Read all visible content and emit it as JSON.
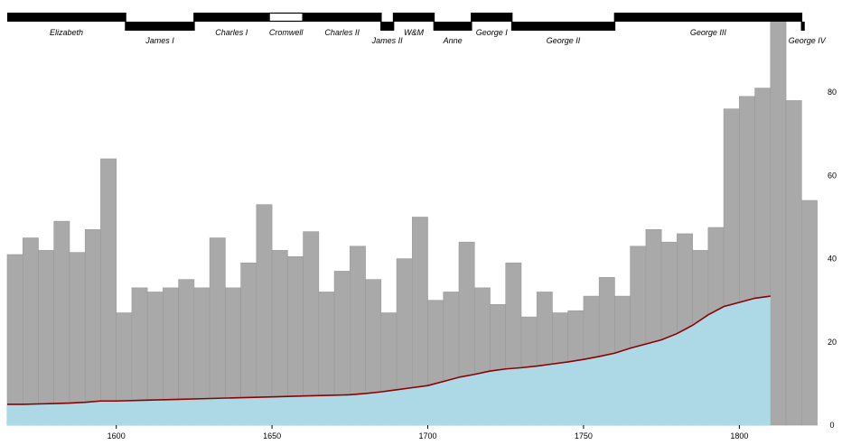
{
  "chart_data": {
    "type": "bar",
    "title": "",
    "xlabel": "",
    "ylabel": "",
    "x_range": [
      1565,
      1826
    ],
    "ylim": [
      0,
      100
    ],
    "grid": true,
    "x_ticks": [
      "1600",
      "1650",
      "1700",
      "1750",
      "1800"
    ],
    "y_ticks": [
      "0",
      "20",
      "40",
      "60",
      "80"
    ],
    "series": [
      {
        "kind": "bars",
        "color": "#a9a9a9",
        "bin_width": 5,
        "x": [
          1565,
          1570,
          1575,
          1580,
          1585,
          1590,
          1595,
          1600,
          1605,
          1610,
          1615,
          1620,
          1625,
          1630,
          1635,
          1640,
          1645,
          1650,
          1655,
          1660,
          1665,
          1670,
          1675,
          1680,
          1685,
          1690,
          1695,
          1700,
          1705,
          1710,
          1715,
          1720,
          1725,
          1730,
          1735,
          1740,
          1745,
          1750,
          1755,
          1760,
          1765,
          1770,
          1775,
          1780,
          1785,
          1790,
          1795,
          1800,
          1805,
          1810,
          1815,
          1820
        ],
        "values": [
          41,
          45,
          42,
          49,
          41.5,
          47,
          64,
          27,
          33,
          32,
          33,
          35,
          33,
          45,
          33,
          39,
          53,
          42,
          40.5,
          46.5,
          32,
          37,
          43,
          35,
          27,
          40,
          50,
          30,
          32,
          44,
          33,
          29,
          39,
          26,
          32,
          27,
          27.5,
          31,
          35.5,
          31,
          43,
          47,
          44,
          46,
          42,
          47.5,
          76,
          79,
          81,
          99,
          78,
          54
        ]
      },
      {
        "kind": "area",
        "color": "#add8e6",
        "line_color": "#8b0000",
        "x": [
          1565,
          1570,
          1575,
          1580,
          1585,
          1590,
          1595,
          1600,
          1610,
          1620,
          1630,
          1640,
          1650,
          1660,
          1670,
          1675,
          1680,
          1685,
          1690,
          1695,
          1700,
          1705,
          1710,
          1715,
          1720,
          1725,
          1730,
          1735,
          1740,
          1745,
          1750,
          1755,
          1760,
          1765,
          1770,
          1775,
          1780,
          1785,
          1790,
          1795,
          1800,
          1805,
          1810
        ],
        "values": [
          5,
          5,
          5.1,
          5.2,
          5.3,
          5.5,
          5.8,
          5.8,
          6,
          6.2,
          6.4,
          6.6,
          6.8,
          7,
          7.2,
          7.3,
          7.6,
          8,
          8.5,
          9,
          9.5,
          10.5,
          11.5,
          12.2,
          13,
          13.5,
          13.8,
          14.2,
          14.7,
          15.2,
          15.8,
          16.5,
          17.3,
          18.5,
          19.5,
          20.5,
          22,
          24,
          26.5,
          28.5,
          29.5,
          30.5,
          31
        ]
      }
    ],
    "reigns": [
      {
        "name": "Elizabeth",
        "start": 1565,
        "end": 1603,
        "row": "top"
      },
      {
        "name": "James I",
        "start": 1603,
        "end": 1625,
        "row": "bottom"
      },
      {
        "name": "Charles I",
        "start": 1625,
        "end": 1649,
        "row": "top"
      },
      {
        "name": "Cromwell",
        "start": 1649,
        "end": 1660,
        "row": "top",
        "hollow": true
      },
      {
        "name": "Charles II",
        "start": 1660,
        "end": 1685,
        "row": "top"
      },
      {
        "name": "James II",
        "start": 1685,
        "end": 1689,
        "row": "bottom"
      },
      {
        "name": "W&M",
        "start": 1689,
        "end": 1702,
        "row": "top"
      },
      {
        "name": "Anne",
        "start": 1702,
        "end": 1714,
        "row": "bottom"
      },
      {
        "name": "George I",
        "start": 1714,
        "end": 1727,
        "row": "top"
      },
      {
        "name": "George II",
        "start": 1727,
        "end": 1760,
        "row": "bottom"
      },
      {
        "name": "George III",
        "start": 1760,
        "end": 1820,
        "row": "top"
      },
      {
        "name": "George IV",
        "start": 1820,
        "end": 1821,
        "row": "bottom"
      }
    ]
  }
}
